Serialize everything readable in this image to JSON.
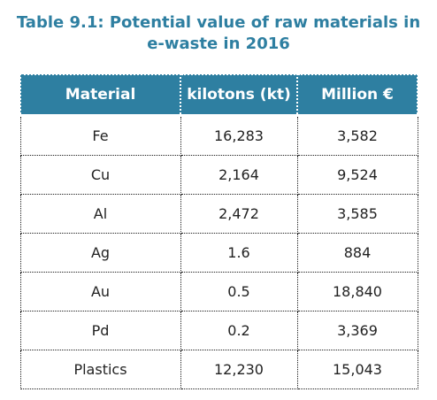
{
  "caption": {
    "line1": "Table 9.1: Potential value of raw materials in",
    "line2": "e-waste in 2016"
  },
  "columns": [
    "Material",
    "kilotons (kt)",
    "Million €"
  ],
  "rows": [
    {
      "material": "Fe",
      "kilotons": "16,283",
      "million_eur": "3,582"
    },
    {
      "material": "Cu",
      "kilotons": "2,164",
      "million_eur": "9,524"
    },
    {
      "material": "Al",
      "kilotons": "2,472",
      "million_eur": "3,585"
    },
    {
      "material": "Ag",
      "kilotons": "1.6",
      "million_eur": "884"
    },
    {
      "material": "Au",
      "kilotons": "0.5",
      "million_eur": "18,840"
    },
    {
      "material": "Pd",
      "kilotons": "0.2",
      "million_eur": "3,369"
    },
    {
      "material": "Plastics",
      "kilotons": "12,230",
      "million_eur": "15,043"
    }
  ],
  "colors": {
    "header_bg": "#2e7fa1",
    "caption": "#2e7fa1"
  }
}
